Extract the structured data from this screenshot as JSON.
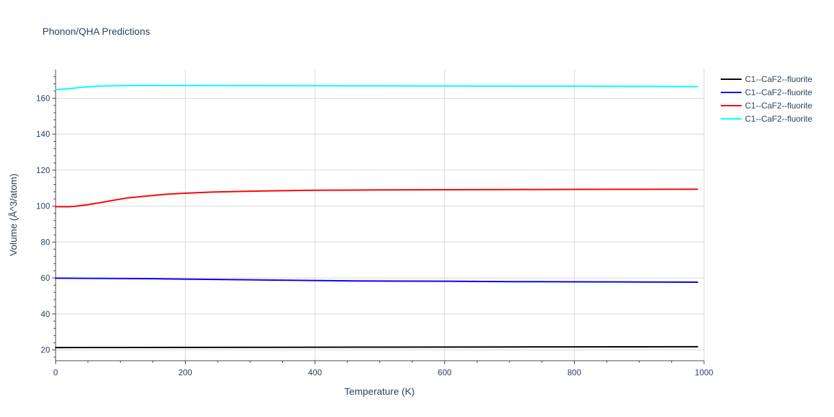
{
  "chart_data": {
    "type": "line",
    "title": "Phonon/QHA Predictions",
    "xlabel": "Temperature (K)",
    "ylabel": "Volume (Å^3/atom)",
    "xlim": [
      0,
      1000
    ],
    "ylim": [
      14,
      176
    ],
    "xticks": [
      0,
      200,
      400,
      600,
      800,
      1000
    ],
    "yticks": [
      20,
      40,
      60,
      80,
      100,
      120,
      140,
      160
    ],
    "grid": true,
    "legend_position": "top-right",
    "series": [
      {
        "name": "C1--CaF2--fluorite",
        "color": "#000000",
        "x": [
          0,
          100,
          200,
          300,
          400,
          500,
          600,
          700,
          800,
          900,
          990
        ],
        "y": [
          21.3,
          21.35,
          21.4,
          21.45,
          21.5,
          21.55,
          21.6,
          21.65,
          21.7,
          21.75,
          21.8
        ]
      },
      {
        "name": "C1--CaF2--fluorite",
        "color": "#0000ff",
        "x": [
          0,
          50,
          100,
          150,
          200,
          250,
          300,
          350,
          400,
          450,
          500,
          600,
          700,
          800,
          900,
          990
        ],
        "y": [
          59.9,
          59.8,
          59.7,
          59.6,
          59.4,
          59.2,
          59.0,
          58.8,
          58.6,
          58.4,
          58.3,
          58.2,
          58.0,
          57.9,
          57.8,
          57.7
        ]
      },
      {
        "name": "C1--CaF2--fluorite",
        "color": "#ff0000",
        "x": [
          0,
          20,
          30,
          50,
          70,
          90,
          110,
          140,
          170,
          200,
          240,
          300,
          350,
          400,
          500,
          600,
          700,
          800,
          900,
          990
        ],
        "y": [
          99.7,
          99.7,
          99.9,
          100.8,
          102.0,
          103.3,
          104.5,
          105.6,
          106.6,
          107.2,
          107.8,
          108.3,
          108.6,
          108.8,
          109.0,
          109.1,
          109.2,
          109.3,
          109.35,
          109.4
        ]
      },
      {
        "name": "C1--CaF2--fluorite",
        "color": "#00ffff",
        "x": [
          0,
          20,
          40,
          70,
          100,
          130,
          200,
          300,
          400,
          500,
          600,
          700,
          800,
          900,
          990
        ],
        "y": [
          164.8,
          165.3,
          166.1,
          166.8,
          167.0,
          167.15,
          167.1,
          167.0,
          166.95,
          166.9,
          166.8,
          166.75,
          166.7,
          166.6,
          166.5
        ]
      }
    ]
  }
}
